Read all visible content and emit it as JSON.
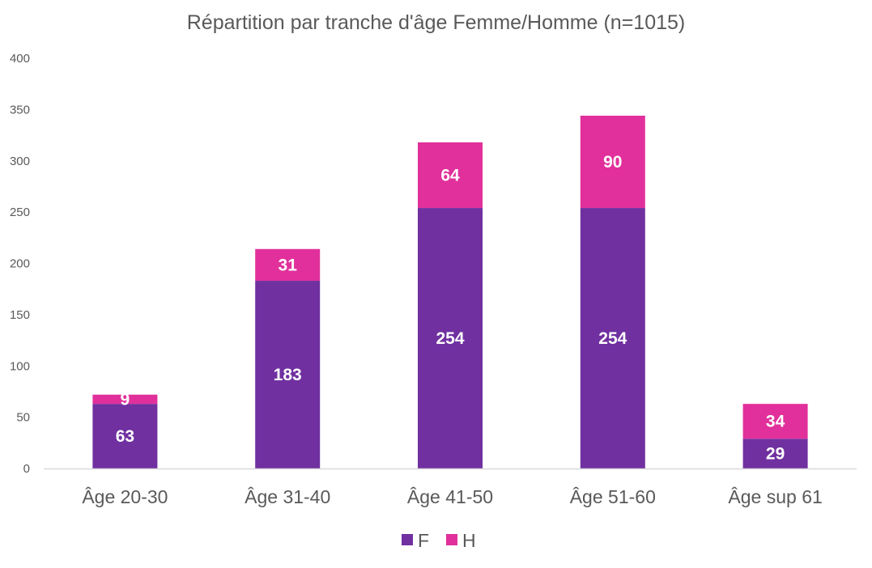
{
  "chart_data": {
    "type": "bar",
    "stacked": true,
    "title": "Répartition par tranche d'âge Femme/Homme (n=1015)",
    "categories": [
      "Âge 20-30",
      "Âge 31-40",
      "Âge 41-50",
      "Âge 51-60",
      "Âge sup 61"
    ],
    "series": [
      {
        "name": "F",
        "color": "#7030A0",
        "values": [
          63,
          183,
          254,
          254,
          29
        ]
      },
      {
        "name": "H",
        "color": "#E1309B",
        "values": [
          9,
          31,
          64,
          90,
          34
        ]
      }
    ],
    "ylim": [
      0,
      400
    ],
    "yticks": [
      0,
      50,
      100,
      150,
      200,
      250,
      300,
      350,
      400
    ],
    "grid": false,
    "legend_position": "bottom"
  }
}
